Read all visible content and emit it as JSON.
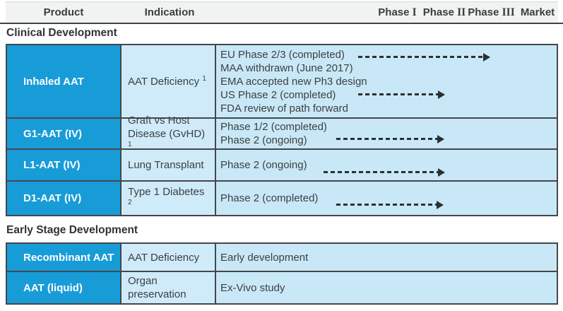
{
  "header": {
    "columns": {
      "product": "Product",
      "indication": "Indication",
      "phase1": {
        "text": "Phase",
        "numeral": "I"
      },
      "phase2": {
        "text": "Phase",
        "numeral": "II"
      },
      "phase3": {
        "text": "Phase",
        "numeral": "III"
      },
      "market": {
        "text": "Market",
        "numeral": ""
      }
    }
  },
  "sections": [
    {
      "title": "Clinical Development",
      "rows": [
        {
          "product": "Inhaled AAT",
          "indication": "AAT Deficiency",
          "indication_sup": "1",
          "status_lines": [
            "EU Phase 2/3 (completed)",
            "MAA withdrawn (June 2017)",
            "EMA accepted new Ph3 design",
            "US Phase 2 (completed)",
            "FDA review of path forward"
          ],
          "arrows": [
            "Phase I to Phase III",
            "Phase I to Phase II"
          ]
        },
        {
          "product": "G1-AAT (IV)",
          "indication": "Graft vs Host Disease (GvHD)",
          "indication_sup": "1",
          "status_lines": [
            "Phase 1/2 (completed)",
            "Phase 2 (ongoing)"
          ],
          "arrows": [
            "Phase I to Phase II"
          ]
        },
        {
          "product": "L1-AAT (IV)",
          "indication": "Lung Transplant",
          "indication_sup": "",
          "status_lines": [
            "Phase 2 (ongoing)"
          ],
          "arrows": [
            "Phase I to Phase II"
          ]
        },
        {
          "product": "D1-AAT (IV)",
          "indication": "Type 1 Diabetes",
          "indication_sup": "2",
          "status_lines": [
            "Phase 2 (completed)"
          ],
          "arrows": [
            "Phase I to Phase II"
          ]
        }
      ]
    },
    {
      "title": "Early Stage Development",
      "rows": [
        {
          "product": "Recombinant AAT",
          "indication": "AAT Deficiency",
          "indication_sup": "",
          "status_lines": [
            "Early development"
          ],
          "arrows": []
        },
        {
          "product": "AAT (liquid)",
          "indication": "Organ preservation",
          "indication_sup": "",
          "status_lines": [
            "Ex-Vivo study"
          ],
          "arrows": []
        }
      ]
    }
  ],
  "colors": {
    "product_cell": "#189cd8",
    "light_cell": "#cbe9f8",
    "header_bg": "#f1f2f2",
    "border_dark": "#43474b",
    "arrow": "#2d3033",
    "gridline": "#aacbd9"
  }
}
